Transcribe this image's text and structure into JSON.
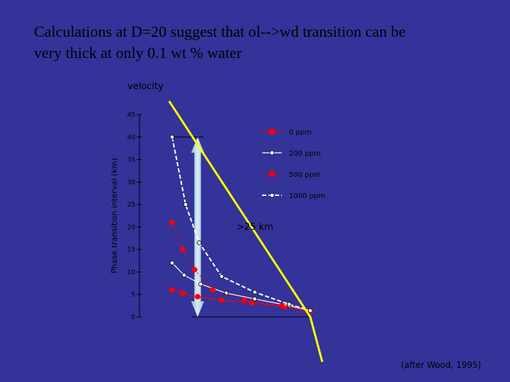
{
  "slide": {
    "title_line1": "Calculations at D=20 suggest that ol-->wd transition can be",
    "title_line2": "very thick at only 0.1 wt % water",
    "credit": "(after Wood, 1995)"
  },
  "colors": {
    "background": "#333399",
    "velocity_line": "#ffff00",
    "red_series": "#ff0000",
    "white_series": "#ffffff",
    "arrow": "#a6cfe6"
  },
  "chart_data": {
    "type": "line",
    "title": "",
    "top_label": "velocity",
    "ylabel": "Phase transition interval (km)",
    "xlabel": "",
    "ylim": [
      0,
      45
    ],
    "yticks": [
      0,
      5,
      10,
      15,
      20,
      25,
      30,
      35,
      40,
      45
    ],
    "grid": false,
    "legend_position": "top-right",
    "annotation": ">25 km",
    "series": [
      {
        "name": "0 ppm",
        "color": "#ff0000",
        "marker": "filled-circle",
        "dash": "solid",
        "x": [
          0,
          0.07,
          0.17,
          0.33,
          0.53,
          0.75,
          0.92
        ],
        "y": [
          6,
          5.3,
          4.5,
          3.7,
          3.1,
          2.3,
          1.2
        ]
      },
      {
        "name": "200 ppm",
        "color": "#ffffff",
        "marker": "open-circle",
        "dash": "solid",
        "x": [
          0,
          0.08,
          0.19,
          0.36,
          0.55,
          0.78,
          0.92
        ],
        "y": [
          12,
          9.3,
          7.3,
          5.3,
          4,
          2.5,
          1.4
        ]
      },
      {
        "name": "500 ppm",
        "color": "#ff0000",
        "marker": "filled-circle",
        "dash": "dotted",
        "x": [
          0,
          0.07,
          0.15,
          0.27,
          0.48,
          0.73,
          0.92
        ],
        "y": [
          21,
          15,
          10.5,
          6,
          3.8,
          2.5,
          1.3
        ]
      },
      {
        "name": "1000 ppm",
        "color": "#ffffff",
        "marker": "open-circle",
        "dash": "dashed",
        "x": [
          0,
          0.09,
          0.18,
          0.33,
          0.55,
          0.78,
          0.92
        ],
        "y": [
          40,
          25,
          16.5,
          9,
          5.5,
          2.8,
          1.4
        ]
      }
    ],
    "velocity_line": {
      "x": [
        -0.02,
        0.92,
        1.0
      ],
      "y": [
        48,
        0,
        -10
      ]
    },
    "double_arrow": {
      "x": 0.17,
      "y_from": 0,
      "y_to": 40
    }
  }
}
